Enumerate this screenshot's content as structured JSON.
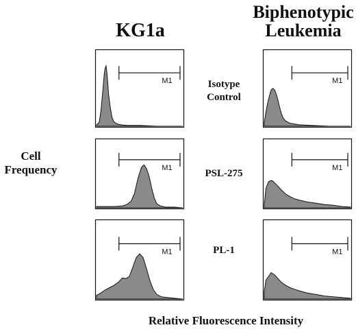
{
  "labels": {
    "col_left": "KG1a",
    "col_right_line1": "Biphenotypic",
    "col_right_line2": "Leukemia",
    "y_axis_line1": "Cell",
    "y_axis_line2": "Frequency",
    "x_axis": "Relative Fluorescence Intensity"
  },
  "rows": [
    {
      "line1": "Isotype",
      "line2": "Control"
    },
    {
      "line1": "PSL-275",
      "line2": ""
    },
    {
      "line1": "PL-1",
      "line2": ""
    }
  ],
  "chart_data": {
    "type": "area",
    "xlabel": "Relative Fluorescence Intensity",
    "ylabel": "Cell Frequency",
    "xlim": [
      0,
      1
    ],
    "ylim": [
      0,
      1
    ],
    "marker_label": "M1",
    "fill_color": "#8a8a8a",
    "panels": [
      {
        "column": "KG1a",
        "row": "Isotype Control",
        "gate": [
          0.26,
          1.0
        ],
        "x": [
          0,
          0.03,
          0.05,
          0.07,
          0.09,
          0.1,
          0.11,
          0.12,
          0.13,
          0.14,
          0.16,
          0.18,
          0.2,
          0.24,
          0.28,
          0.35,
          0.5,
          0.7,
          1.0
        ],
        "y": [
          0.02,
          0.05,
          0.2,
          0.45,
          0.72,
          0.8,
          0.83,
          0.74,
          0.6,
          0.44,
          0.25,
          0.12,
          0.06,
          0.03,
          0.02,
          0.01,
          0.01,
          0.0,
          0.0
        ]
      },
      {
        "column": "Biphenotypic Leukemia",
        "row": "Isotype Control",
        "gate": [
          0.32,
          1.0
        ],
        "x": [
          0,
          0.02,
          0.04,
          0.06,
          0.08,
          0.1,
          0.12,
          0.14,
          0.16,
          0.18,
          0.2,
          0.22,
          0.25,
          0.3,
          0.4,
          0.55,
          0.75,
          1.0
        ],
        "y": [
          0.05,
          0.2,
          0.32,
          0.42,
          0.5,
          0.52,
          0.5,
          0.44,
          0.35,
          0.25,
          0.17,
          0.11,
          0.07,
          0.04,
          0.02,
          0.01,
          0.0,
          0.0
        ]
      },
      {
        "column": "KG1a",
        "row": "PSL-275",
        "gate": [
          0.26,
          1.0
        ],
        "x": [
          0,
          0.1,
          0.2,
          0.3,
          0.35,
          0.4,
          0.44,
          0.48,
          0.52,
          0.55,
          0.58,
          0.61,
          0.64,
          0.67,
          0.7,
          0.74,
          0.8,
          0.9,
          1.0
        ],
        "y": [
          0.02,
          0.02,
          0.02,
          0.03,
          0.05,
          0.1,
          0.22,
          0.45,
          0.62,
          0.66,
          0.6,
          0.48,
          0.3,
          0.15,
          0.06,
          0.03,
          0.01,
          0.01,
          0.0
        ]
      },
      {
        "column": "Biphenotypic Leukemia",
        "row": "PSL-275",
        "gate": [
          0.32,
          1.0
        ],
        "x": [
          0,
          0.02,
          0.05,
          0.08,
          0.1,
          0.13,
          0.16,
          0.2,
          0.25,
          0.3,
          0.35,
          0.4,
          0.5,
          0.6,
          0.7,
          0.8,
          0.9,
          1.0
        ],
        "y": [
          0.05,
          0.3,
          0.4,
          0.42,
          0.41,
          0.37,
          0.33,
          0.27,
          0.21,
          0.17,
          0.14,
          0.12,
          0.09,
          0.07,
          0.05,
          0.04,
          0.02,
          0.01
        ]
      },
      {
        "column": "KG1a",
        "row": "PL-1",
        "gate": [
          0.26,
          1.0
        ],
        "x": [
          0,
          0.05,
          0.1,
          0.15,
          0.2,
          0.25,
          0.3,
          0.34,
          0.38,
          0.42,
          0.46,
          0.5,
          0.54,
          0.58,
          0.62,
          0.66,
          0.7,
          0.75,
          0.82,
          0.9,
          1.0
        ],
        "y": [
          0.05,
          0.08,
          0.12,
          0.15,
          0.18,
          0.22,
          0.28,
          0.27,
          0.3,
          0.42,
          0.55,
          0.6,
          0.55,
          0.4,
          0.24,
          0.12,
          0.06,
          0.03,
          0.02,
          0.01,
          0.0
        ]
      },
      {
        "column": "Biphenotypic Leukemia",
        "row": "PL-1",
        "gate": [
          0.32,
          1.0
        ],
        "x": [
          0,
          0.02,
          0.05,
          0.08,
          0.12,
          0.16,
          0.2,
          0.25,
          0.3,
          0.35,
          0.4,
          0.5,
          0.6,
          0.7,
          0.8,
          0.9,
          1.0
        ],
        "y": [
          0.1,
          0.25,
          0.3,
          0.35,
          0.32,
          0.27,
          0.22,
          0.18,
          0.15,
          0.13,
          0.11,
          0.08,
          0.06,
          0.04,
          0.03,
          0.02,
          0.01
        ]
      }
    ]
  }
}
